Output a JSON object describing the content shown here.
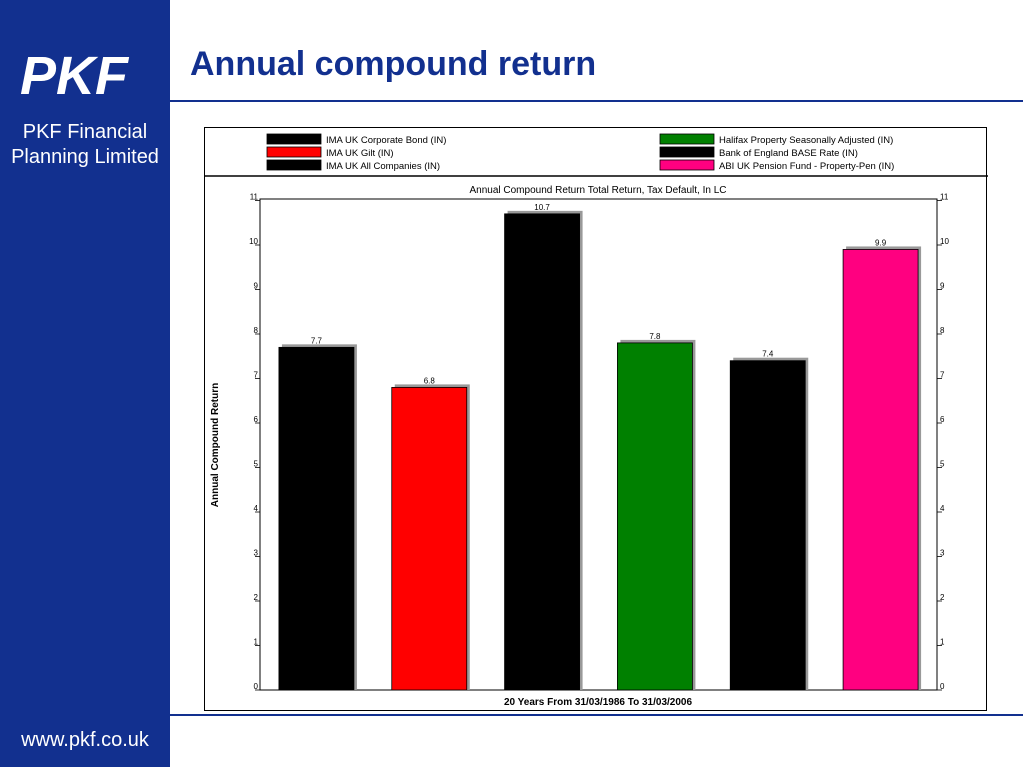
{
  "company": {
    "name_line1": "PKF Financial",
    "name_line2": "Planning Limited",
    "logo_text": "PKF",
    "website": "www.pkf.co.uk"
  },
  "slide": {
    "title": "Annual compound return"
  },
  "colors": {
    "brand": "#12308f",
    "black": "#000000",
    "red": "#ff0000",
    "green": "#008000",
    "pink": "#ff0080"
  },
  "chart_data": {
    "type": "bar",
    "title": "Annual Compound Return Total Return, Tax Default, In LC",
    "xlabel": "20 Years From 31/03/1986 To 31/03/2006",
    "ylabel": "Annual Compound Return",
    "ylim": [
      0,
      11
    ],
    "yticks": [
      0,
      1,
      2,
      3,
      4,
      5,
      6,
      7,
      8,
      9,
      10,
      11
    ],
    "grid": false,
    "legend_position": "top",
    "series": [
      {
        "name": "IMA UK Corporate Bond (IN)",
        "value": 7.7,
        "label": "7.7",
        "color": "#000000"
      },
      {
        "name": "IMA UK Gilt (IN)",
        "value": 6.8,
        "label": "6.8",
        "color": "#ff0000"
      },
      {
        "name": "IMA UK All Companies (IN)",
        "value": 10.7,
        "label": "10.7",
        "color": "#000000"
      },
      {
        "name": "Halifax Property Seasonally Adjusted (IN)",
        "value": 7.8,
        "label": "7.8",
        "color": "#008000"
      },
      {
        "name": "Bank of England BASE Rate (IN)",
        "value": 7.4,
        "label": "7.4",
        "color": "#000000"
      },
      {
        "name": "ABI UK Pension Fund - Property-Pen (IN)",
        "value": 9.9,
        "label": "9.9",
        "color": "#ff0080"
      }
    ]
  }
}
